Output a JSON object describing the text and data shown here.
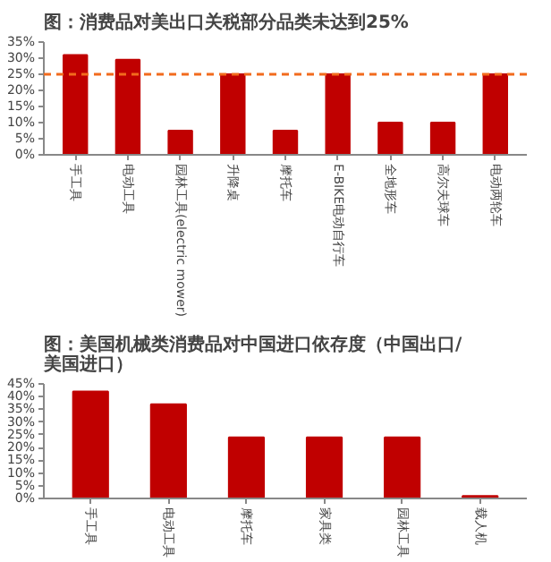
{
  "chart_data": [
    {
      "type": "bar",
      "title": "图：消费品对美出口关税部分品类未达到25%",
      "categories": [
        "手工具",
        "电动工具",
        "园林工具(electric mower)",
        "升降桌",
        "摩托车",
        "E-BIKE电动自行车",
        "全地形车",
        "高尔夫球车",
        "电动两轮车"
      ],
      "series": [
        {
          "color": "#c00000",
          "values": [
            31,
            29.5,
            7.5,
            25,
            7.5,
            25,
            10,
            10,
            25
          ]
        }
      ],
      "ylim": [
        0,
        35
      ],
      "yticks": [
        {
          "value": 0,
          "label": "0%"
        },
        {
          "value": 5,
          "label": "5%"
        },
        {
          "value": 10,
          "label": "10%"
        },
        {
          "value": 15,
          "label": "15%"
        },
        {
          "value": 20,
          "label": "20%"
        },
        {
          "value": 25,
          "label": "25%"
        },
        {
          "value": 30,
          "label": "30%"
        },
        {
          "value": 35,
          "label": "35%"
        }
      ],
      "ref_lines": [
        {
          "axis": "y",
          "value": 25,
          "color": "#f26b1d",
          "line_style": "dashed"
        }
      ],
      "grid": false
    },
    {
      "type": "bar",
      "title": "图：美国机械类消费品对中国进口依存度（中国出口/美国进口）",
      "categories": [
        "手工具",
        "电动工具",
        "摩托车",
        "家具类",
        "园林工具",
        "载人机"
      ],
      "series": [
        {
          "color": "#c00000",
          "values": [
            42,
            37,
            24,
            24,
            24,
            1
          ]
        }
      ],
      "ylim": [
        0,
        45
      ],
      "yticks": [
        {
          "value": 0,
          "label": "0%"
        },
        {
          "value": 5,
          "label": "5%"
        },
        {
          "value": 10,
          "label": "10%"
        },
        {
          "value": 15,
          "label": "15%"
        },
        {
          "value": 20,
          "label": "20%"
        },
        {
          "value": 25,
          "label": "25%"
        },
        {
          "value": 30,
          "label": "30%"
        },
        {
          "value": 35,
          "label": "35%"
        },
        {
          "value": 40,
          "label": "40%"
        },
        {
          "value": 45,
          "label": "45%"
        }
      ],
      "grid": false
    }
  ]
}
